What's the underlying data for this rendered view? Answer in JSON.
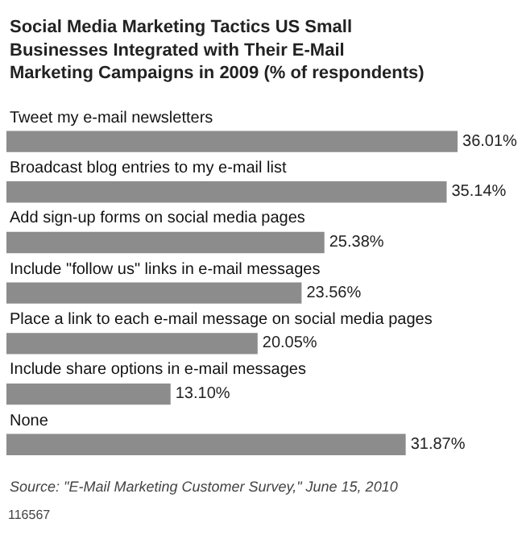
{
  "chart_data": {
    "type": "bar",
    "orientation": "horizontal",
    "title": "Social Media Marketing Tactics US Small Businesses Integrated with Their E-Mail Marketing Campaigns in 2009 (% of respondents)",
    "categories": [
      "Tweet my e-mail newsletters",
      "Broadcast blog entries to my e-mail list",
      "Add sign-up forms on social media pages",
      "Include \"follow us\" links in e-mail messages",
      "Place a link to each e-mail message on social media pages",
      "Include share options in e-mail messages",
      "None"
    ],
    "values": [
      36.01,
      35.14,
      25.38,
      23.56,
      20.05,
      13.1,
      31.87
    ],
    "value_labels": [
      "36.01%",
      "35.14%",
      "25.38%",
      "23.56%",
      "20.05%",
      "13.10%",
      "31.87%"
    ],
    "color": "#8c8c8c",
    "annotations": [
      "Source: \"E-Mail Marketing Customer Survey,\" June 15, 2010",
      "116567"
    ]
  }
}
